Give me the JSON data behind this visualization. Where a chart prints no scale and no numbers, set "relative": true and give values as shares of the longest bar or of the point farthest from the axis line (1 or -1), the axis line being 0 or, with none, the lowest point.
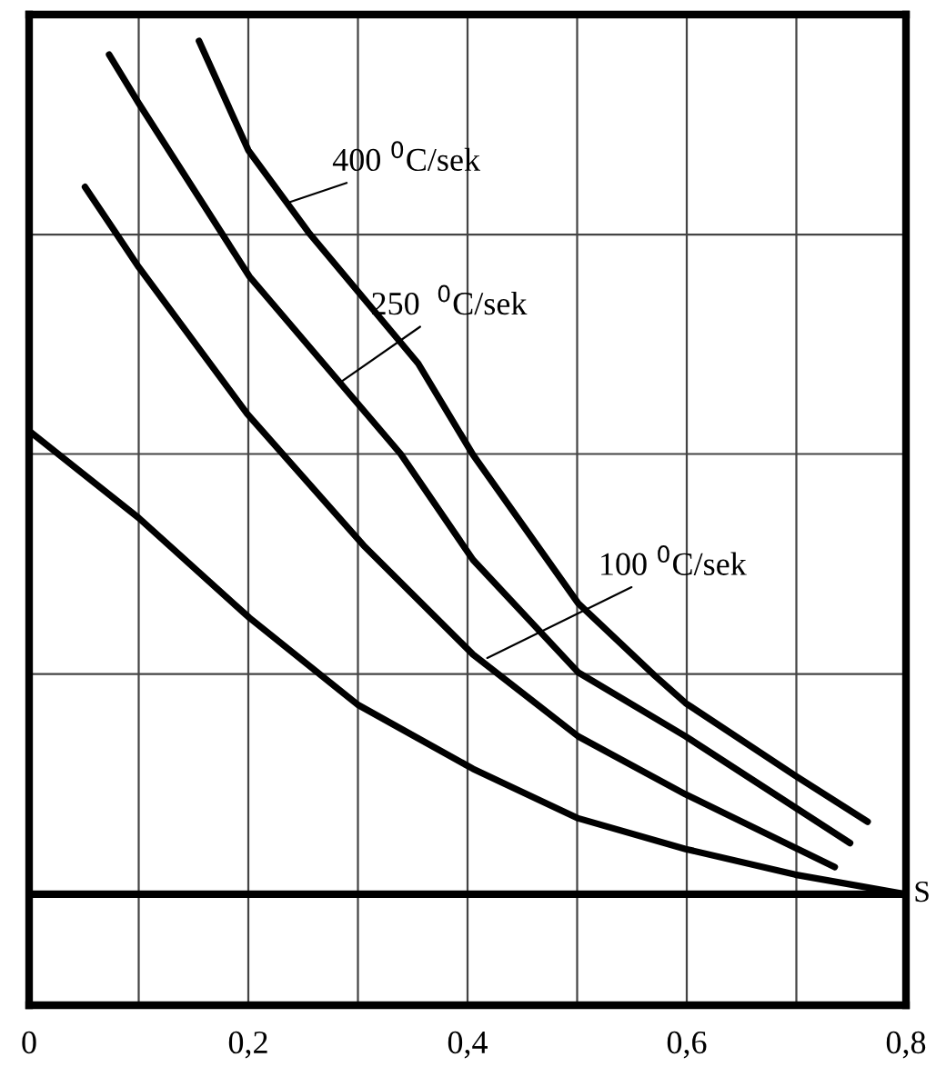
{
  "chart_data": {
    "type": "line",
    "relative": true,
    "xlabel": "S",
    "xlim": [
      0,
      0.8
    ],
    "xticks": [
      0,
      {
        "value": 0.1,
        "label": null
      },
      {
        "value": 0.2,
        "label": "0,2"
      },
      {
        "value": 0.3,
        "label": null
      },
      {
        "value": 0.4,
        "label": "0,4"
      },
      {
        "value": 0.5,
        "label": null
      },
      {
        "value": 0.6,
        "label": "0,6"
      },
      {
        "value": 0.7,
        "label": null
      },
      {
        "value": 0.8,
        "label": "0,8"
      }
    ],
    "grid": true,
    "marker": "none",
    "line_style": "solid",
    "series": [
      {
        "color": "#000000",
        "x": [
          0.155,
          0.2,
          0.256,
          0.355,
          0.405,
          0.501,
          0.571,
          0.599,
          0.699,
          0.765
        ],
        "values": [
          1.0,
          0.872,
          0.774,
          0.622,
          0.515,
          0.341,
          0.256,
          0.224,
          0.139,
          0.085
        ]
      },
      {
        "color": "#000000",
        "x": [
          0.073,
          0.1,
          0.201,
          0.339,
          0.405,
          0.501,
          0.599,
          0.749
        ],
        "values": [
          0.984,
          0.927,
          0.724,
          0.516,
          0.392,
          0.26,
          0.185,
          0.06
        ]
      },
      {
        "color": "#000000",
        "x": [
          0.051,
          0.1,
          0.199,
          0.305,
          0.405,
          0.501,
          0.599,
          0.735
        ],
        "values": [
          0.829,
          0.735,
          0.563,
          0.409,
          0.281,
          0.185,
          0.117,
          0.032
        ]
      },
      {
        "color": "#000000",
        "x": [
          0.0,
          0.1,
          0.201,
          0.3,
          0.405,
          0.501,
          0.599,
          0.699,
          0.8
        ],
        "values": [
          0.543,
          0.441,
          0.324,
          0.222,
          0.147,
          0.089,
          0.053,
          0.023,
          0.0
        ]
      }
    ],
    "annotations": [
      {
        "text": "400 $^{0}$C/sek",
        "x": 0.235,
        "y": 0.81
      },
      {
        "text": "250  $^{0}$C/sek",
        "x": 0.284,
        "y": 0.6
      },
      {
        "text": "100 $^{0}$C/sek",
        "x": 0.418,
        "y": 0.277
      }
    ]
  }
}
